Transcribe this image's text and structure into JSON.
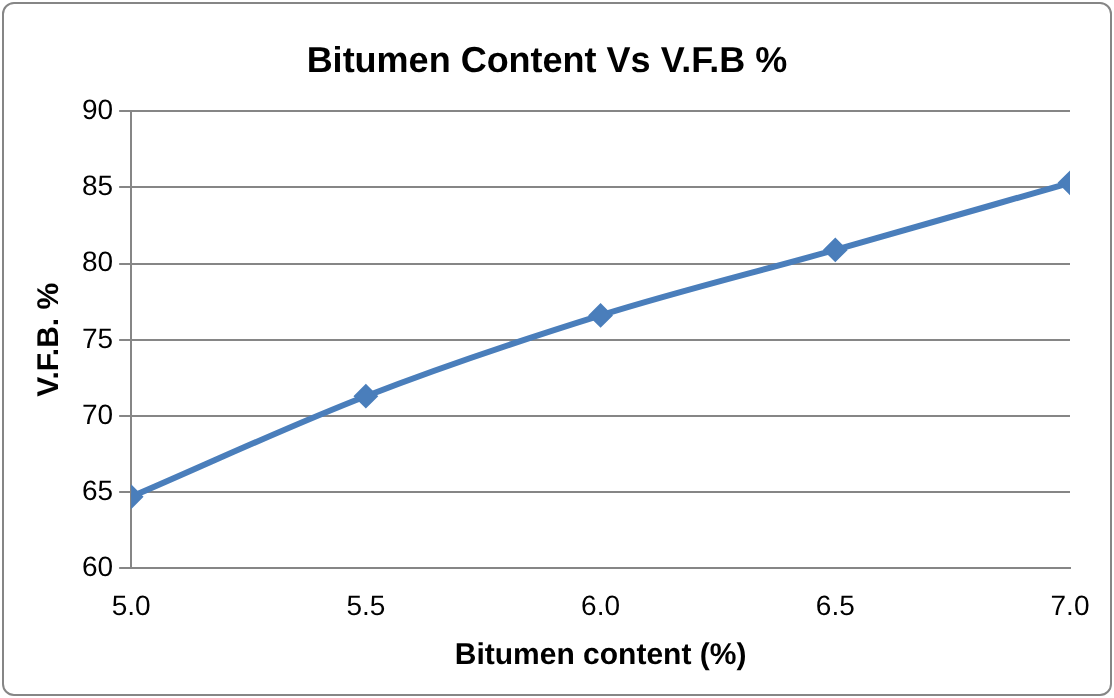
{
  "chart_data": {
    "type": "line",
    "title": "Bitumen Content Vs V.F.B %",
    "xlabel": "Bitumen content (%)",
    "ylabel": "V.F.B. %",
    "x": [
      5.0,
      5.5,
      6.0,
      6.5,
      7.0
    ],
    "series": [
      {
        "color": "#4a7ebb",
        "values": [
          64.7,
          71.3,
          76.6,
          80.9,
          85.3
        ]
      }
    ],
    "xlim": [
      5,
      7
    ],
    "xticks": [
      {
        "value": 5,
        "label": "5.0"
      },
      {
        "value": 5.5,
        "label": "5.5"
      },
      {
        "value": 6,
        "label": "6.0"
      },
      {
        "value": 6.5,
        "label": "6.5"
      },
      {
        "value": 7,
        "label": "7.0"
      }
    ],
    "ylim": [
      60,
      90
    ],
    "yticks": [
      60,
      65,
      70,
      75,
      80,
      85,
      90
    ],
    "grid": "y",
    "legend": false,
    "marker": "diamond",
    "line_style": "solid"
  }
}
